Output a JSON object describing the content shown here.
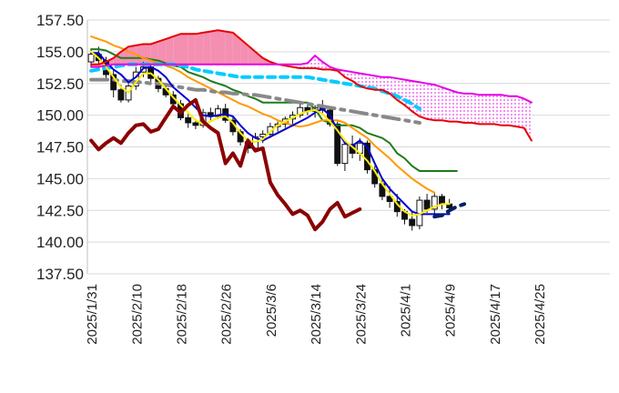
{
  "chart_data": {
    "type": "line",
    "title": "",
    "xlabel": "",
    "ylabel": "",
    "ylim": [
      137.5,
      157.5
    ],
    "yticks": [
      "157.50",
      "155.00",
      "152.50",
      "150.00",
      "147.50",
      "145.00",
      "142.50",
      "140.00",
      "137.50"
    ],
    "xticks": [
      {
        "label": "2025/1/31",
        "i": 0
      },
      {
        "label": "2025/2/10",
        "i": 6
      },
      {
        "label": "2025/2/18",
        "i": 12
      },
      {
        "label": "2025/2/26",
        "i": 18
      },
      {
        "label": "2025/3/6",
        "i": 24
      },
      {
        "label": "2025/3/14",
        "i": 30
      },
      {
        "label": "2025/3/24",
        "i": 36
      },
      {
        "label": "2025/4/1",
        "i": 42
      },
      {
        "label": "2025/4/9",
        "i": 48
      },
      {
        "label": "2025/4/17",
        "i": 54
      },
      {
        "label": "2025/4/25",
        "i": 60
      }
    ],
    "grid": "horizontal",
    "legend": "none",
    "total_slots": 70,
    "candles": [
      [
        154.2,
        155.2,
        153.8,
        154.8
      ],
      [
        154.8,
        155.4,
        154.0,
        154.3
      ],
      [
        154.3,
        154.6,
        152.8,
        153.2
      ],
      [
        153.2,
        153.6,
        151.4,
        152.0
      ],
      [
        152.0,
        152.4,
        151.0,
        151.2
      ],
      [
        151.2,
        152.6,
        151.0,
        152.3
      ],
      [
        152.3,
        153.8,
        152.0,
        153.4
      ],
      [
        153.4,
        154.2,
        153.0,
        153.8
      ],
      [
        153.8,
        154.0,
        152.6,
        152.9
      ],
      [
        152.9,
        153.1,
        151.8,
        152.1
      ],
      [
        152.1,
        152.4,
        151.4,
        151.6
      ],
      [
        151.6,
        151.9,
        150.6,
        150.9
      ],
      [
        150.9,
        151.2,
        149.6,
        149.8
      ],
      [
        149.8,
        150.1,
        149.0,
        149.4
      ],
      [
        149.4,
        149.7,
        148.9,
        149.2
      ],
      [
        149.2,
        150.5,
        149.0,
        150.2
      ],
      [
        150.2,
        150.6,
        149.6,
        149.9
      ],
      [
        149.9,
        150.8,
        149.7,
        150.5
      ],
      [
        150.5,
        150.9,
        149.4,
        149.6
      ],
      [
        149.6,
        149.9,
        148.4,
        148.7
      ],
      [
        148.7,
        148.9,
        147.6,
        147.9
      ],
      [
        147.9,
        148.2,
        147.0,
        147.4
      ],
      [
        147.4,
        148.6,
        147.2,
        148.3
      ],
      [
        148.3,
        148.8,
        147.8,
        148.5
      ],
      [
        148.5,
        149.4,
        148.2,
        149.1
      ],
      [
        149.1,
        149.5,
        148.7,
        149.3
      ],
      [
        149.3,
        149.9,
        149.0,
        149.7
      ],
      [
        149.7,
        150.3,
        149.3,
        150.0
      ],
      [
        150.0,
        150.9,
        149.8,
        150.6
      ],
      [
        150.6,
        151.0,
        150.0,
        150.3
      ],
      [
        150.3,
        150.8,
        149.8,
        150.6
      ],
      [
        150.6,
        151.2,
        150.1,
        150.4
      ],
      [
        150.4,
        150.6,
        149.1,
        149.3
      ],
      [
        149.3,
        149.5,
        146.0,
        146.2
      ],
      [
        146.2,
        148.0,
        145.6,
        147.7
      ],
      [
        147.7,
        148.4,
        146.6,
        147.0
      ],
      [
        147.0,
        148.2,
        146.4,
        147.8
      ],
      [
        147.8,
        148.0,
        145.4,
        145.7
      ],
      [
        145.7,
        146.0,
        144.3,
        144.6
      ],
      [
        144.6,
        145.1,
        143.3,
        143.6
      ],
      [
        143.6,
        144.4,
        142.7,
        143.2
      ],
      [
        143.2,
        143.8,
        142.0,
        142.4
      ],
      [
        142.4,
        142.6,
        141.4,
        141.8
      ],
      [
        141.8,
        142.4,
        140.9,
        141.3
      ],
      [
        141.3,
        143.6,
        141.0,
        143.3
      ],
      [
        143.3,
        143.8,
        142.3,
        142.6
      ],
      [
        142.6,
        143.9,
        142.1,
        143.6
      ],
      [
        143.6,
        143.8,
        142.6,
        143.0
      ],
      [
        143.0,
        143.4,
        142.2,
        142.7
      ]
    ],
    "candle_slots": [
      0,
      1,
      2,
      3,
      4,
      5,
      6,
      7,
      8,
      9,
      10,
      11,
      12,
      13,
      14,
      15,
      16,
      17,
      18,
      19,
      20,
      21,
      22,
      23,
      24,
      25,
      26,
      27,
      28,
      29,
      30,
      31,
      32,
      33,
      34,
      35,
      36,
      37,
      38,
      39,
      40,
      41,
      42,
      43,
      44,
      45,
      46,
      47,
      48
    ],
    "series": [
      {
        "color": "#e60000",
        "start": 0,
        "dash": "",
        "values": [
          154.0,
          154.0,
          154.2,
          154.5,
          155.0,
          155.4,
          155.5,
          155.6,
          155.6,
          155.8,
          156.0,
          156.2,
          156.4,
          156.4,
          156.4,
          156.5,
          156.6,
          156.7,
          156.6,
          156.5,
          156.0,
          155.5,
          155.0,
          154.5,
          154.2,
          154.0,
          153.9,
          153.8,
          153.7,
          153.7,
          153.7,
          153.6,
          153.6,
          153.5,
          153.0,
          152.7,
          152.3,
          152.1,
          152.0,
          152.0,
          151.7,
          151.2,
          150.8,
          150.3,
          149.9,
          149.7,
          149.6,
          149.6,
          149.5,
          149.5,
          149.4,
          149.4,
          149.3,
          149.3,
          149.3,
          149.2,
          149.2,
          149.1,
          149.0,
          148.0
        ]
      },
      {
        "color": "#e600e6",
        "start": 0,
        "dash": "",
        "values": [
          153.8,
          153.8,
          153.9,
          154.0,
          154.0,
          154.0,
          154.0,
          154.0,
          154.0,
          154.0,
          154.0,
          154.0,
          154.0,
          154.0,
          154.0,
          154.0,
          154.0,
          154.0,
          154.0,
          154.0,
          154.0,
          154.0,
          154.0,
          154.0,
          154.0,
          154.0,
          154.0,
          154.0,
          154.0,
          154.1,
          154.7,
          154.2,
          153.8,
          153.6,
          153.5,
          153.4,
          153.3,
          153.2,
          153.1,
          153.0,
          153.0,
          152.9,
          152.8,
          152.7,
          152.6,
          152.5,
          152.4,
          152.2,
          152.0,
          151.8,
          151.7,
          151.7,
          151.6,
          151.6,
          151.6,
          151.6,
          151.5,
          151.5,
          151.3,
          151.0
        ]
      },
      {
        "color": "#222222",
        "start": 0,
        "dash": "",
        "values": [
          155.0,
          155.1,
          155.0,
          154.9,
          154.5,
          154.3,
          154.0,
          153.9,
          153.8,
          153.8,
          153.8,
          153.8,
          153.8,
          153.6,
          153.5,
          153.4,
          153.3,
          153.2,
          153.1,
          153.0,
          152.8,
          152.5,
          152.2,
          152.0,
          151.8,
          151.5,
          151.4,
          151.2,
          151.0,
          150.8,
          150.5,
          150.2,
          150.0,
          149.7,
          149.5,
          149.2,
          149.0,
          148.8,
          148.5,
          148.2,
          148.0,
          147.5,
          146.9,
          146.3,
          145.7,
          145.1,
          144.5,
          143.9,
          143.4
        ]
      },
      {
        "color": "#1e7b1e",
        "start": 0,
        "dash": "",
        "values": [
          155.2,
          155.2,
          155.1,
          154.8,
          154.5,
          154.5,
          154.5,
          154.5,
          154.4,
          154.3,
          154.1,
          153.9,
          153.8,
          153.4,
          153.2,
          153.0,
          152.7,
          152.5,
          152.3,
          152.0,
          151.8,
          151.5,
          151.3,
          151.0,
          151.0,
          151.0,
          151.0,
          151.0,
          151.0,
          151.0,
          150.5,
          149.6,
          149.4,
          149.2,
          149.2,
          149.2,
          149.0,
          148.6,
          148.4,
          148.2,
          147.8,
          147.0,
          146.6,
          146.0,
          145.6,
          145.6,
          145.6,
          145.6,
          145.6,
          145.6
        ]
      },
      {
        "color": "#0000d0",
        "start": 0,
        "dash": "",
        "values": [
          154.9,
          154.9,
          154.2,
          153.6,
          153.2,
          152.6,
          153.0,
          153.7,
          153.8,
          153.5,
          153.0,
          152.2,
          151.7,
          151.2,
          150.6,
          150.0,
          149.9,
          150.0,
          150.1,
          149.9,
          149.2,
          148.6,
          148.2,
          148.0,
          148.3,
          148.6,
          148.9,
          149.2,
          149.5,
          149.8,
          150.2,
          150.5,
          150.0,
          148.8,
          147.8,
          147.6,
          148.0,
          147.5,
          146.2,
          145.0,
          144.2,
          143.6,
          143.0,
          142.4,
          142.2,
          142.2,
          142.2,
          142.2,
          142.2
        ]
      },
      {
        "color": "#ff9900",
        "start": 0,
        "dash": "",
        "values": [
          156.2,
          156.0,
          155.8,
          155.5,
          155.3,
          155.0,
          154.8,
          154.5,
          154.3,
          154.1,
          153.9,
          153.7,
          153.4,
          153.0,
          152.7,
          152.4,
          152.1,
          151.8,
          151.5,
          151.2,
          150.9,
          150.7,
          150.4,
          150.1,
          149.9,
          149.6,
          149.4,
          149.2,
          149.1,
          149.2,
          149.4,
          149.6,
          149.6,
          149.6,
          149.4,
          149.0,
          148.6,
          148.2,
          147.6,
          147.1,
          146.6,
          146.0,
          145.5,
          145.0,
          144.6,
          144.2,
          143.9
        ]
      },
      {
        "color": "#ffee00",
        "start": 0,
        "dash": "",
        "values": [
          155.0,
          154.5,
          153.8,
          153.0,
          152.2,
          151.8,
          152.6,
          153.3,
          153.3,
          152.8,
          152.1,
          151.4,
          150.8,
          150.2,
          149.6,
          149.3,
          149.5,
          149.8,
          149.9,
          149.4,
          148.6,
          148.0,
          147.9,
          148.1,
          148.7,
          149.2,
          149.5,
          149.8,
          150.1,
          150.3,
          150.4,
          150.1,
          149.5,
          148.8,
          148.0,
          147.5,
          147.0,
          146.4,
          145.6,
          144.6,
          143.8,
          143.0,
          142.4,
          142.1,
          142.2,
          142.5,
          142.8,
          143.0,
          143.0
        ]
      },
      {
        "color": "#8b0000",
        "start": 0,
        "dash": "",
        "values": [
          148.0,
          147.3,
          147.8,
          148.2,
          147.8,
          148.6,
          149.2,
          149.3,
          148.7,
          148.9,
          149.8,
          150.7,
          150.2,
          150.8,
          151.2,
          149.5,
          149.0,
          148.6,
          146.2,
          147.0,
          146.0,
          148.0,
          147.2,
          147.4,
          144.7,
          143.7,
          143.0,
          142.2,
          142.5,
          142.1,
          141.0,
          141.6,
          142.6,
          143.1,
          142.0,
          142.3,
          142.6
        ]
      },
      {
        "color": "#00ccff",
        "start": 0,
        "dash": "8,6",
        "values": [
          153.5,
          153.6,
          153.7,
          153.8,
          153.9,
          154.0,
          154.0,
          154.0,
          154.0,
          154.0,
          154.0,
          154.0,
          153.9,
          153.8,
          153.6,
          153.5,
          153.4,
          153.3,
          153.2,
          153.1,
          153.0,
          153.0,
          153.0,
          153.0,
          153.0,
          153.0,
          153.0,
          153.0,
          153.0,
          153.0,
          152.9,
          152.8,
          152.7,
          152.6,
          152.5,
          152.4,
          152.3,
          152.2,
          152.1,
          151.9,
          151.7,
          151.5,
          151.2,
          150.9,
          150.5
        ]
      },
      {
        "color": "#888888",
        "start": 0,
        "dash": "18,7,4,7",
        "values": [
          152.8,
          152.8,
          152.8,
          152.8,
          152.7,
          152.7,
          152.6,
          152.6,
          152.5,
          152.5,
          152.4,
          152.3,
          152.2,
          152.1,
          152.0,
          152.0,
          151.9,
          151.8,
          151.8,
          151.7,
          151.7,
          151.6,
          151.6,
          151.5,
          151.4,
          151.3,
          151.2,
          151.1,
          151.0,
          150.9,
          150.8,
          150.7,
          150.6,
          150.5,
          150.4,
          150.3,
          150.2,
          150.1,
          150.0,
          149.9,
          149.8,
          149.7,
          149.6,
          149.5,
          149.4
        ]
      },
      {
        "color": "#002060",
        "start": 46,
        "dash": "9,7",
        "values": [
          142.0,
          142.1,
          142.5,
          142.8,
          143.0
        ]
      }
    ]
  }
}
